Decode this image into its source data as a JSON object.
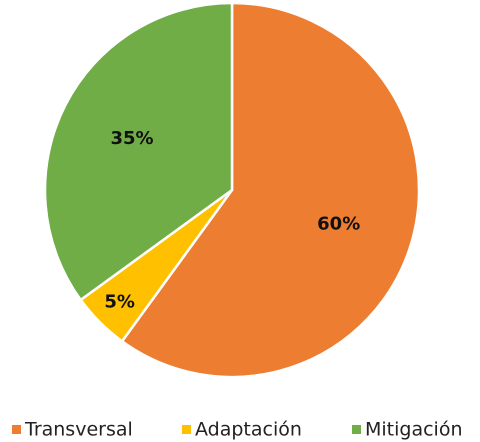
{
  "chart_data": {
    "type": "pie",
    "categories": [
      "Transversal",
      "Adaptación",
      "Mitigación"
    ],
    "values": [
      60,
      5,
      35
    ],
    "value_labels": [
      "60%",
      "5%",
      "35%"
    ],
    "colors": [
      "#ED7D31",
      "#FFC000",
      "#70AD47"
    ],
    "legend": "bottom"
  }
}
